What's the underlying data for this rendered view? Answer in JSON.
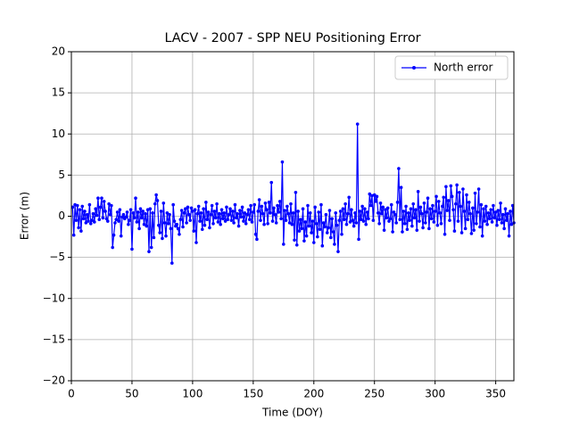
{
  "chart_data": {
    "type": "line",
    "title": "LACV - 2007 - SPP NEU Positioning Error",
    "xlabel": "Time (DOY)",
    "ylabel": "Error (m)",
    "xlim": [
      0,
      365
    ],
    "ylim": [
      -20,
      20
    ],
    "xticks": [
      0,
      50,
      100,
      150,
      200,
      250,
      300,
      350
    ],
    "yticks": [
      {
        "value": -20,
        "label": "−20"
      },
      {
        "value": -15,
        "label": "−15"
      },
      {
        "value": -10,
        "label": "−10"
      },
      {
        "value": -5,
        "label": "−5"
      },
      0,
      5,
      10,
      15,
      20
    ],
    "grid": true,
    "legend": "upper right",
    "x": [
      1,
      2,
      3,
      4,
      5,
      6,
      7,
      8,
      9,
      10,
      11,
      12,
      13,
      14,
      15,
      16,
      17,
      18,
      19,
      20,
      21,
      22,
      23,
      24,
      25,
      26,
      27,
      28,
      29,
      30,
      31,
      32,
      33,
      34,
      35,
      36,
      37,
      38,
      39,
      40,
      41,
      42,
      43,
      44,
      45,
      46,
      47,
      48,
      49,
      50,
      51,
      52,
      53,
      54,
      55,
      56,
      57,
      58,
      59,
      60,
      61,
      62,
      63,
      64,
      65,
      66,
      67,
      68,
      69,
      70,
      71,
      72,
      73,
      74,
      75,
      76,
      77,
      78,
      79,
      80,
      81,
      82,
      83,
      84,
      85,
      86,
      87,
      88,
      89,
      90,
      91,
      92,
      93,
      94,
      95,
      96,
      97,
      98,
      99,
      100,
      101,
      102,
      103,
      104,
      105,
      106,
      107,
      108,
      109,
      110,
      111,
      112,
      113,
      114,
      115,
      116,
      117,
      118,
      119,
      120,
      121,
      122,
      123,
      124,
      125,
      126,
      127,
      128,
      129,
      130,
      131,
      132,
      133,
      134,
      135,
      136,
      137,
      138,
      139,
      140,
      141,
      142,
      143,
      144,
      145,
      146,
      147,
      148,
      149,
      150,
      151,
      152,
      153,
      154,
      155,
      156,
      157,
      158,
      159,
      160,
      161,
      162,
      163,
      164,
      165,
      166,
      167,
      168,
      169,
      170,
      171,
      172,
      173,
      174,
      175,
      176,
      177,
      178,
      179,
      180,
      181,
      182,
      183,
      184,
      185,
      186,
      187,
      188,
      189,
      190,
      191,
      192,
      193,
      194,
      195,
      196,
      197,
      198,
      199,
      200,
      201,
      202,
      203,
      204,
      205,
      206,
      207,
      208,
      209,
      210,
      211,
      212,
      213,
      214,
      215,
      216,
      217,
      218,
      219,
      220,
      221,
      222,
      223,
      224,
      225,
      226,
      227,
      228,
      229,
      230,
      231,
      232,
      233,
      234,
      235,
      236,
      237,
      238,
      239,
      240,
      241,
      242,
      243,
      244,
      245,
      246,
      247,
      248,
      249,
      250,
      251,
      252,
      253,
      254,
      255,
      256,
      257,
      258,
      259,
      260,
      261,
      262,
      263,
      264,
      265,
      266,
      267,
      268,
      269,
      270,
      271,
      272,
      273,
      274,
      275,
      276,
      277,
      278,
      279,
      280,
      281,
      282,
      283,
      284,
      285,
      286,
      287,
      288,
      289,
      290,
      291,
      292,
      293,
      294,
      295,
      296,
      297,
      298,
      299,
      300,
      301,
      302,
      303,
      304,
      305,
      306,
      307,
      308,
      309,
      310,
      311,
      312,
      313,
      314,
      315,
      316,
      317,
      318,
      319,
      320,
      321,
      322,
      323,
      324,
      325,
      326,
      327,
      328,
      329,
      330,
      331,
      332,
      333,
      334,
      335,
      336,
      337,
      338,
      339,
      340,
      341,
      342,
      343,
      344,
      345,
      346,
      347,
      348,
      349,
      350,
      351,
      352,
      353,
      354,
      355,
      356,
      357,
      358,
      359,
      360,
      361,
      362,
      363,
      364,
      365
    ],
    "series": [
      {
        "name": "North error",
        "color": "#0000ff",
        "values": [
          1.1,
          -2.3,
          1.4,
          -0.5,
          1.3,
          -1.4,
          0.8,
          -1.8,
          1.2,
          -0.3,
          0.6,
          -0.8,
          0.2,
          -0.6,
          1.4,
          -0.9,
          -0.5,
          0.3,
          -0.7,
          0.9,
          0.1,
          2.2,
          -0.4,
          1.1,
          2.2,
          -0.2,
          1.8,
          0.6,
          -0.3,
          -0.6,
          1.5,
          0.2,
          1.3,
          -3.8,
          -2.3,
          -0.8,
          -0.4,
          0.5,
          -0.6,
          0.8,
          -2.4,
          -0.1,
          0.2,
          -0.3,
          -0.1,
          0.5,
          -1.0,
          -0.5,
          0.8,
          -4.0,
          0.4,
          -0.2,
          2.2,
          -0.7,
          0.5,
          -1.5,
          0.9,
          -0.2,
          0.6,
          -1.0,
          0.3,
          -1.2,
          0.8,
          -4.3,
          0.9,
          -3.8,
          0.4,
          -2.6,
          1.5,
          2.6,
          1.9,
          -1.1,
          -2.0,
          0.6,
          -2.7,
          1.6,
          -0.8,
          -2.4,
          0.4,
          -0.9,
          0.2,
          -1.5,
          -5.7,
          1.4,
          -0.6,
          -1.2,
          -1.0,
          -1.5,
          -2.2,
          -0.4,
          0.7,
          -1.3,
          0.4,
          0.9,
          -0.8,
          1.1,
          0.2,
          -0.5,
          1.0,
          0.6,
          -1.8,
          0.8,
          -3.2,
          0.3,
          1.2,
          -0.6,
          0.4,
          -1.6,
          0.9,
          -1.1,
          1.7,
          -0.4,
          0.5,
          -1.4,
          0.2,
          1.3,
          -0.9,
          0.6,
          -0.2,
          1.5,
          -0.7,
          0.3,
          -1.0,
          0.8,
          -0.3,
          0.4,
          -0.6,
          1.1,
          -0.4,
          0.2,
          0.9,
          -0.5,
          0.6,
          -0.8,
          1.4,
          -0.2,
          0.3,
          -1.2,
          0.7,
          -0.1,
          1.1,
          -0.6,
          0.4,
          -0.9,
          0.2,
          0.8,
          -0.4,
          1.3,
          -0.7,
          0.5,
          1.4,
          -2.2,
          -2.8,
          0.6,
          2.0,
          -0.5,
          1.2,
          0.3,
          -1.0,
          1.6,
          0.8,
          -0.9,
          1.7,
          0.4,
          4.1,
          -0.6,
          1.0,
          0.2,
          -0.8,
          1.3,
          0.5,
          1.8,
          -0.3,
          6.6,
          -3.4,
          0.7,
          -0.5,
          1.2,
          0.3,
          -0.8,
          1.5,
          -1.0,
          0.4,
          -2.9,
          2.9,
          -3.5,
          0.6,
          -1.8,
          -0.4,
          -1.5,
          0.9,
          -3.0,
          -0.7,
          -2.4,
          1.3,
          -1.2,
          0.4,
          -2.0,
          -0.6,
          -3.2,
          1.1,
          -0.9,
          -2.5,
          0.5,
          -1.6,
          1.4,
          -3.6,
          -0.8,
          -1.3,
          0.2,
          -2.0,
          -1.4,
          0.7,
          -2.6,
          -0.3,
          -1.9,
          -3.4,
          0.4,
          -1.1,
          -4.3,
          -0.5,
          0.6,
          -2.2,
          0.9,
          -0.4,
          1.5,
          -1.0,
          0.3,
          2.3,
          -0.7,
          0.8,
          -0.5,
          -1.2,
          0.4,
          -0.8,
          11.2,
          -2.8,
          0.6,
          -0.4,
          1.2,
          -0.6,
          0.9,
          -1.0,
          0.5,
          -0.3,
          2.7,
          1.3,
          2.5,
          -0.5,
          2.6,
          1.8,
          2.4,
          0.4,
          -0.9,
          1.6,
          0.3,
          1.1,
          -1.7,
          0.8,
          -0.2,
          1.0,
          -0.6,
          -0.3,
          1.4,
          -1.9,
          0.5,
          0.2,
          -0.8,
          1.7,
          5.8,
          -0.4,
          3.5,
          -1.9,
          0.6,
          -0.9,
          1.2,
          -1.6,
          0.4,
          -0.5,
          0.9,
          -1.2,
          1.5,
          -0.2,
          0.8,
          -1.7,
          3.0,
          -0.6,
          1.1,
          0.3,
          -1.4,
          1.6,
          -0.8,
          0.5,
          2.2,
          -1.5,
          0.9,
          -0.3,
          1.3,
          -0.7,
          0.6,
          2.4,
          -1.1,
          1.8,
          0.4,
          -0.9,
          1.2,
          2.3,
          -2.2,
          3.6,
          0.7,
          1.9,
          -0.5,
          3.7,
          2.4,
          0.8,
          -1.8,
          1.5,
          3.8,
          -0.6,
          2.9,
          1.2,
          -2.0,
          3.3,
          0.6,
          -1.5,
          2.6,
          -0.4,
          1.7,
          0.3,
          -2.1,
          1.0,
          -1.7,
          2.8,
          -0.9,
          0.5,
          3.3,
          -1.3,
          1.4,
          -2.4,
          0.9,
          -0.6,
          1.2,
          -1.0,
          0.4,
          -0.3,
          0.8,
          -0.7,
          1.3,
          -0.2,
          0.5,
          -1.1,
          0.7,
          -0.4,
          1.6,
          -0.8,
          0.2,
          -1.5,
          0.9,
          -0.5,
          0.3,
          -2.4,
          0.6,
          -1.0,
          1.3,
          -0.8
        ]
      }
    ]
  }
}
